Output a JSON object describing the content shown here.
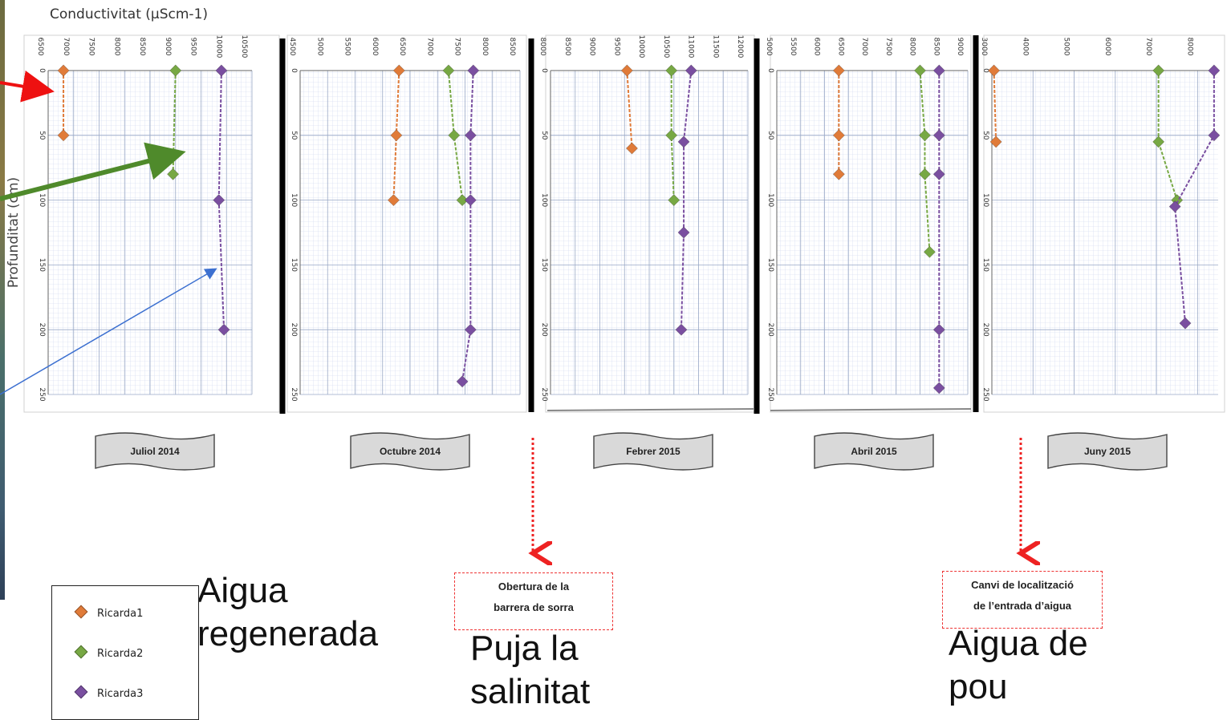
{
  "page": {
    "title": "Conductivitat (µScm-1)",
    "y_label": "Profunditat (cm)"
  },
  "colors": {
    "Ricarda1": "#e07b39",
    "Ricarda2": "#77a844",
    "Ricarda3": "#7a4fa0",
    "annotation": "#e33333"
  },
  "chart_data": [
    {
      "type": "line",
      "title": "Juliol 2014",
      "x_ticks": [
        "6500",
        "7000",
        "7500",
        "8000",
        "8500",
        "9000",
        "9500",
        "10000",
        "10500"
      ],
      "xlim": [
        6500,
        10500
      ],
      "y_ticks": [
        "0",
        "50",
        "100",
        "150",
        "200",
        "250"
      ],
      "ylim": [
        0,
        250
      ],
      "series": [
        {
          "name": "Ricarda1",
          "points": [
            [
              6800,
              0
            ],
            [
              6800,
              50
            ]
          ]
        },
        {
          "name": "Ricarda2",
          "points": [
            [
              9000,
              0
            ],
            [
              8950,
              80
            ]
          ]
        },
        {
          "name": "Ricarda3",
          "points": [
            [
              9900,
              0
            ],
            [
              9850,
              100
            ],
            [
              9950,
              200
            ]
          ]
        }
      ]
    },
    {
      "type": "line",
      "title": "Octubre 2014",
      "x_ticks": [
        "4500",
        "5000",
        "5500",
        "6000",
        "6500",
        "7000",
        "7500",
        "8000",
        "8500"
      ],
      "xlim": [
        4500,
        8500
      ],
      "y_ticks": [
        "0",
        "50",
        "100",
        "150",
        "200",
        "250"
      ],
      "ylim": [
        0,
        250
      ],
      "series": [
        {
          "name": "Ricarda1",
          "points": [
            [
              6300,
              0
            ],
            [
              6250,
              50
            ],
            [
              6200,
              100
            ]
          ]
        },
        {
          "name": "Ricarda2",
          "points": [
            [
              7200,
              0
            ],
            [
              7300,
              50
            ],
            [
              7450,
              100
            ]
          ]
        },
        {
          "name": "Ricarda3",
          "points": [
            [
              7650,
              0
            ],
            [
              7600,
              50
            ],
            [
              7600,
              100
            ],
            [
              7600,
              200
            ],
            [
              7450,
              240
            ]
          ]
        }
      ]
    },
    {
      "type": "line",
      "title": "Febrer 2015",
      "x_ticks": [
        "8000",
        "8500",
        "9000",
        "9500",
        "10000",
        "10500",
        "11000",
        "11500",
        "12000"
      ],
      "xlim": [
        8000,
        12000
      ],
      "y_ticks": [
        "0",
        "50",
        "100",
        "150",
        "200",
        "250"
      ],
      "ylim": [
        0,
        250
      ],
      "series": [
        {
          "name": "Ricarda1",
          "points": [
            [
              9550,
              0
            ],
            [
              9650,
              60
            ]
          ]
        },
        {
          "name": "Ricarda2",
          "points": [
            [
              10450,
              0
            ],
            [
              10450,
              50
            ],
            [
              10500,
              100
            ]
          ]
        },
        {
          "name": "Ricarda3",
          "points": [
            [
              10850,
              0
            ],
            [
              10700,
              55
            ],
            [
              10700,
              125
            ],
            [
              10650,
              200
            ]
          ]
        }
      ]
    },
    {
      "type": "line",
      "title": "Abril 2015",
      "x_ticks": [
        "5000",
        "5500",
        "6000",
        "6500",
        "7000",
        "7500",
        "8000",
        "8500",
        "9000"
      ],
      "xlim": [
        5000,
        9000
      ],
      "y_ticks": [
        "0",
        "50",
        "100",
        "150",
        "200",
        "250"
      ],
      "ylim": [
        0,
        250
      ],
      "series": [
        {
          "name": "Ricarda1",
          "points": [
            [
              6300,
              0
            ],
            [
              6300,
              50
            ],
            [
              6300,
              80
            ]
          ]
        },
        {
          "name": "Ricarda2",
          "points": [
            [
              8000,
              0
            ],
            [
              8100,
              50
            ],
            [
              8100,
              80
            ],
            [
              8200,
              140
            ]
          ]
        },
        {
          "name": "Ricarda3",
          "points": [
            [
              8400,
              0
            ],
            [
              8400,
              50
            ],
            [
              8400,
              80
            ],
            [
              8400,
              200
            ],
            [
              8400,
              245
            ]
          ]
        }
      ]
    },
    {
      "type": "line",
      "title": "Juny 2015",
      "x_ticks": [
        "3000",
        "4000",
        "5000",
        "6000",
        "7000",
        "8000"
      ],
      "xlim": [
        3000,
        8500
      ],
      "y_ticks": [
        "0",
        "50",
        "100",
        "150",
        "200",
        "250"
      ],
      "ylim": [
        0,
        250
      ],
      "series": [
        {
          "name": "Ricarda1",
          "points": [
            [
              3050,
              0
            ],
            [
              3100,
              55
            ]
          ]
        },
        {
          "name": "Ricarda2",
          "points": [
            [
              7050,
              0
            ],
            [
              7050,
              55
            ],
            [
              7500,
              100
            ]
          ]
        },
        {
          "name": "Ricarda3",
          "points": [
            [
              8400,
              0
            ],
            [
              8400,
              50
            ],
            [
              7450,
              105
            ],
            [
              7700,
              195
            ]
          ]
        }
      ]
    }
  ],
  "annotations": {
    "box1": {
      "line1": "Obertura de la",
      "line2": "barrera de sorra"
    },
    "box2": {
      "line1": "Canvi de localització",
      "line2": "de l’entrada d’aigua"
    },
    "label_regenerada": {
      "line1": "Aigua",
      "line2": "regenerada"
    },
    "label_puja": {
      "line1": "Puja la",
      "line2": "salinitat"
    },
    "label_pou": {
      "line1": "Aigua de",
      "line2": "pou"
    }
  },
  "legend": {
    "items": [
      "Ricarda1",
      "Ricarda2",
      "Ricarda3"
    ]
  }
}
